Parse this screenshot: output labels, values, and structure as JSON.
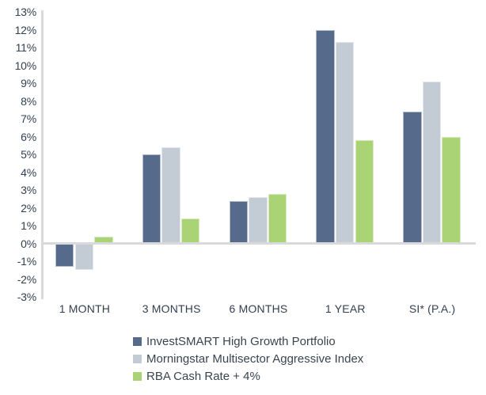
{
  "chart_data": {
    "type": "bar",
    "title": "",
    "xlabel": "",
    "ylabel": "",
    "categories": [
      "1 MONTH",
      "3 MONTHS",
      "6 MONTHS",
      "1 YEAR",
      "SI* (P.A.)"
    ],
    "series": [
      {
        "name": "InvestSMART High Growth Portfolio",
        "color": "#566b8c",
        "values": [
          -1.3,
          5.0,
          2.4,
          12.0,
          7.4
        ]
      },
      {
        "name": "Morningstar Multisector Aggressive Index",
        "color": "#c3cbd4",
        "values": [
          -1.5,
          5.4,
          2.6,
          11.3,
          9.1
        ]
      },
      {
        "name": "RBA Cash Rate + 4%",
        "color": "#a9d374",
        "values": [
          0.4,
          1.4,
          2.8,
          5.8,
          6.0
        ]
      }
    ],
    "ylim": [
      -3,
      13
    ],
    "ytick_step": 1,
    "ytick_suffix": "%",
    "ytick_labels": [
      "13%",
      "12%",
      "11%",
      "10%",
      "9%",
      "8%",
      "7%",
      "6%",
      "5%",
      "4%",
      "3%",
      "2%",
      "1%",
      "0%",
      "-1%",
      "-2%",
      "-3%"
    ],
    "grid": "zero-baseline-only",
    "legend_position": "bottom",
    "colors": {
      "axis_line": "#d9d9d9",
      "axis_text": "#33404f",
      "legend_text": "#3a4450",
      "background": "#ffffff"
    }
  }
}
